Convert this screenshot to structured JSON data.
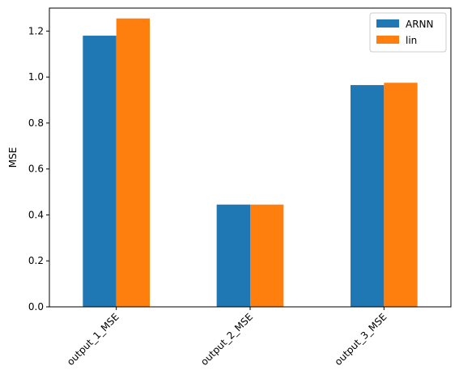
{
  "chart_data": {
    "type": "bar",
    "categories": [
      "output_1_MSE",
      "output_2_MSE",
      "output_3_MSE"
    ],
    "series": [
      {
        "name": "ARNN",
        "values": [
          1.18,
          0.445,
          0.965
        ],
        "color": "#1f77b4"
      },
      {
        "name": "lin",
        "values": [
          1.255,
          0.445,
          0.975
        ],
        "color": "#ff7f0e"
      }
    ],
    "title": "",
    "xlabel": "",
    "ylabel": "MSE",
    "ylim": [
      0,
      1.3
    ],
    "yticks": [
      "0.0",
      "0.2",
      "0.4",
      "0.6",
      "0.8",
      "1.0",
      "1.2"
    ],
    "grid": false,
    "legend_position": "top-right",
    "x_tick_rotation": 45
  }
}
